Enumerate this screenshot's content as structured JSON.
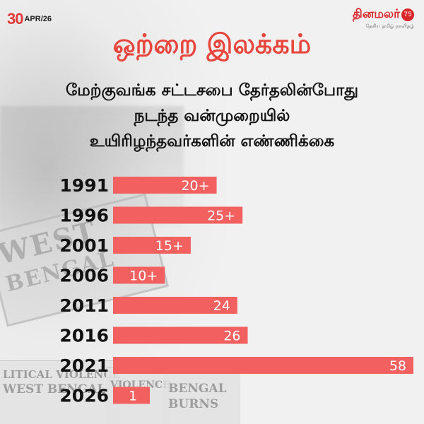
{
  "header": {
    "date_day": "30",
    "date_rest": "APR/26",
    "logo_name": "தினமலர்",
    "logo_badge": "75",
    "logo_tagline": "தேசிய தமிழ் நாளிதழ்"
  },
  "title": "ஒற்றை இலக்கம்",
  "subtitle_lines": [
    "மேற்குவங்க சட்டசபை தேர்தலின்போது",
    "நடந்த வன்முறையில்",
    "உயிரிழந்தவர்களின் எண்ணிக்கை"
  ],
  "background_text": {
    "sign_line1": "WEST",
    "sign_line2": "BENGAL",
    "paper_left_line1": "LITICAL VIOLENCE",
    "paper_left_line2": "WEST BENGAL",
    "paper_mid": "VIOLENCE",
    "paper_right_line1": "BENGAL",
    "paper_right_line2": "BURNS"
  },
  "colors": {
    "bar": "#f26060",
    "title": "#e8453d",
    "label_text": "#ffffff",
    "year_text": "#111111"
  },
  "chart_data": {
    "type": "bar",
    "orientation": "horizontal",
    "categories": [
      "1991",
      "1996",
      "2001",
      "2006",
      "2011",
      "2016",
      "2021",
      "2026"
    ],
    "values": [
      20,
      25,
      15,
      10,
      24,
      26,
      58,
      1
    ],
    "value_labels": [
      "20+",
      "25+",
      "15+",
      "10+",
      "24",
      "26",
      "58",
      "1"
    ],
    "xlim": [
      0,
      58
    ],
    "grid": false,
    "legend": "none"
  }
}
